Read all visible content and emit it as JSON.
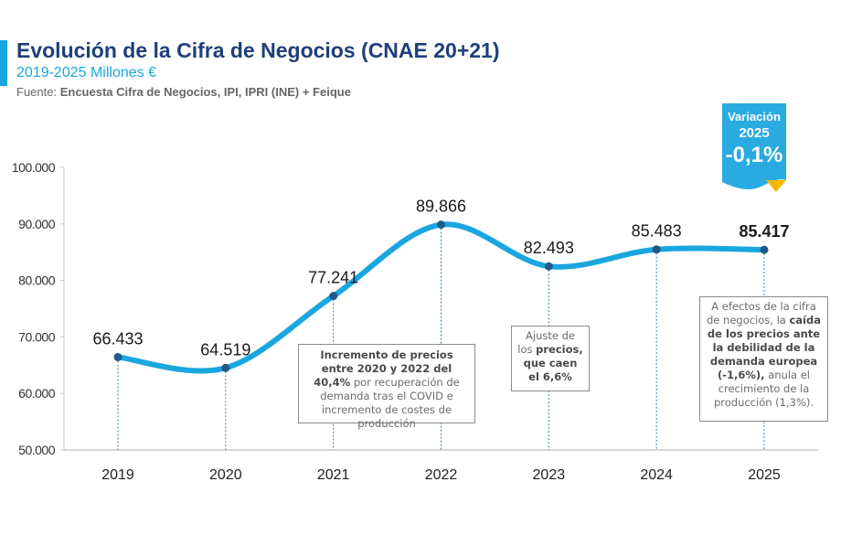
{
  "header": {
    "title": "Evolución de la Cifra de Negocios (CNAE 20+21)",
    "subtitle": "2019-2025 Millones €",
    "source_label": "Fuente:",
    "source_text": "Encuesta Cifra de Negocios, IPI, IPRI (INE) + Feique"
  },
  "badge": {
    "line1": "Variación",
    "line2": "2025",
    "line3": "-0,1%",
    "color": "#29abe2",
    "arrow_color": "#f5b800"
  },
  "notes": {
    "note_2021": {
      "bold": "Incremento de precios entre 2020 y 2022 del 40,4%",
      "normal": " por recuperación de demanda tras el COVID e incremento de costes de producción"
    },
    "note_2023": {
      "normal": "Ajuste de los ",
      "bold": "precios, que caen el",
      "tail": " 6,6%"
    },
    "note_2025": {
      "normal": "A efectos de la cifra de negocios, la ",
      "bold": "caída de los precios ante la debilidad de la demanda europea (-1,6%),",
      "tail": " anula el crecimiento de la producción (1,3%)."
    }
  },
  "chart_data": {
    "type": "line",
    "title": "Evolución de la Cifra de Negocios (CNAE 20+21)",
    "subtitle": "2019-2025 Millones €",
    "xlabel": "",
    "ylabel": "",
    "categories": [
      "2019",
      "2020",
      "2021",
      "2022",
      "2023",
      "2024",
      "2025"
    ],
    "series": [
      {
        "name": "Cifra de Negocios",
        "values": [
          66433,
          64519,
          77241,
          89866,
          82493,
          85483,
          85417
        ],
        "color": "#1aa6e0",
        "marker_color": "#1f5a8a"
      }
    ],
    "data_labels": [
      "66.433",
      "64.519",
      "77.241",
      "89.866",
      "82.493",
      "85.483",
      "85.417"
    ],
    "bold_label_index": 6,
    "ylim": [
      50000,
      100000
    ],
    "yticks": [
      50000,
      60000,
      70000,
      80000,
      90000,
      100000
    ],
    "ytick_labels": [
      "50.000",
      "60.000",
      "70.000",
      "80.000",
      "90.000",
      "100.000"
    ],
    "grid": false,
    "smooth": true,
    "legend": "none"
  }
}
